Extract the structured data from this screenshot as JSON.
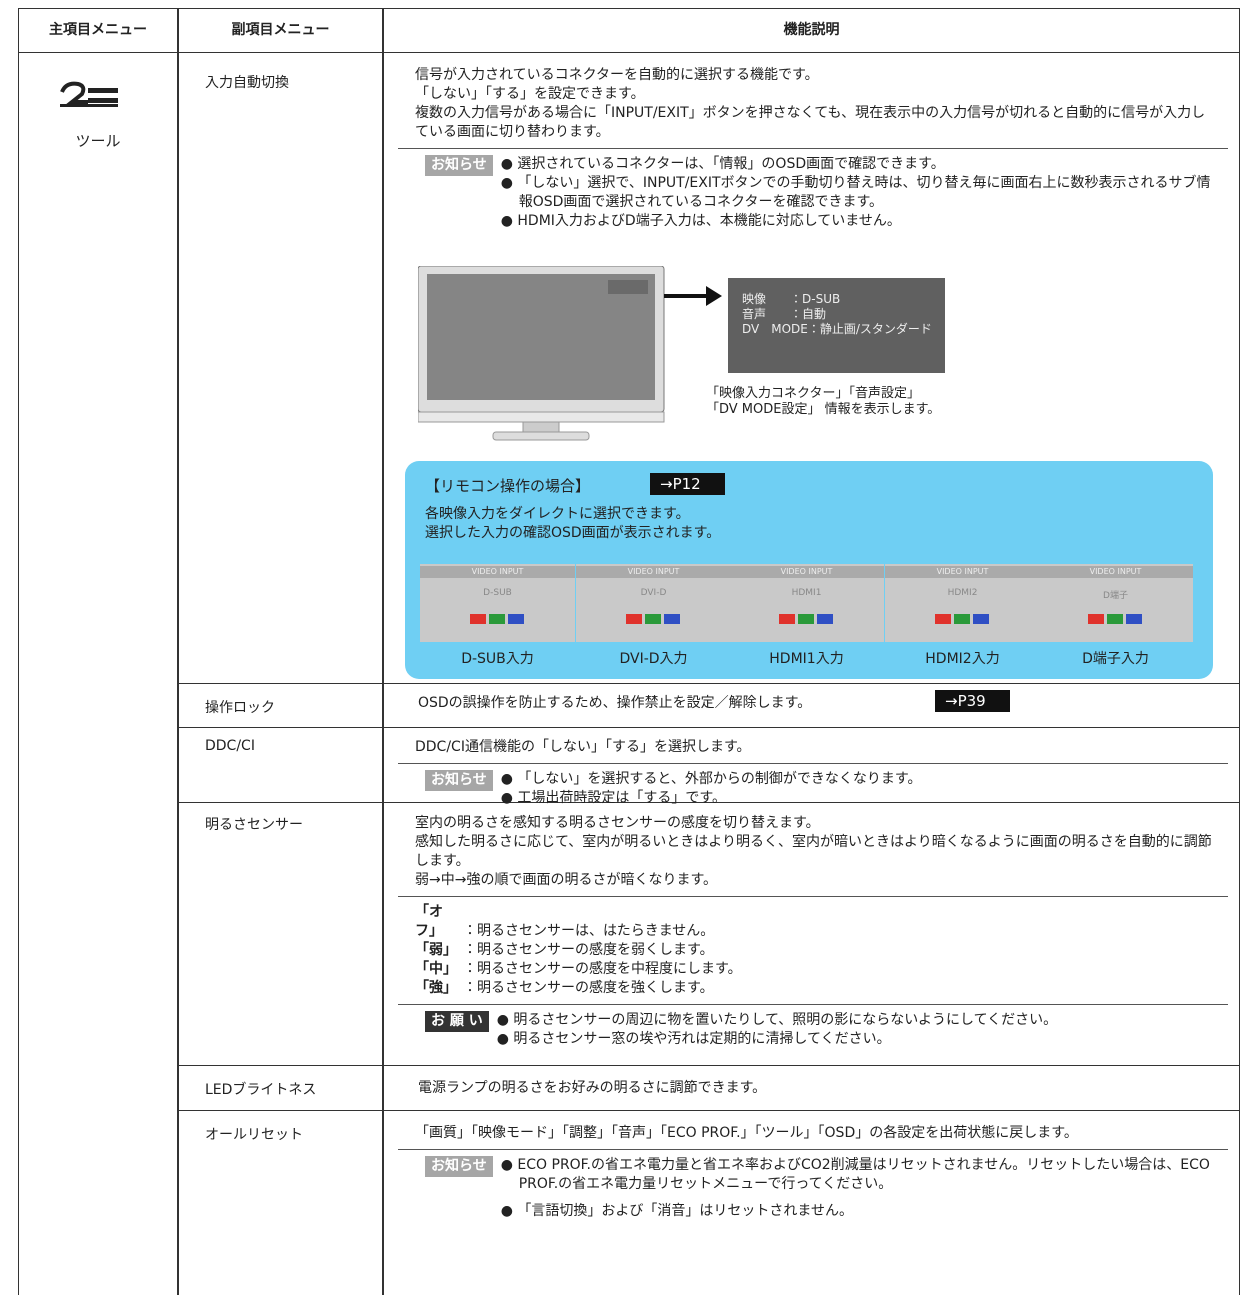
{
  "header": {
    "main": "主項目メニュー",
    "sub": "副項目メニュー",
    "desc": "機能説明"
  },
  "main_item": "ツール",
  "rows": [
    {
      "name": "入力自動切換",
      "description": [
        "信号が入力されているコネクターを自動的に選択する機能です。",
        "「しない」「する」を設定できます。",
        "複数の入力信号がある場合に「INPUT/EXIT」ボタンを押さなくても、現在表示中の入力信号が切れると自動的に信号が入力している画面に切り替わります。"
      ],
      "note": {
        "label": "お知らせ",
        "items": [
          "選択されているコネクターは、「情報」のOSD画面で確認できます。",
          "「しない」選択で、INPUT/EXITボタンでの手動切り替え時は、切り替え毎に画面右上に数秒表示されるサブ情報OSD画面で選択されているコネクターを確認できます。",
          "HDMI入力およびD端子入力は、本機能に対応していません。"
        ]
      },
      "osd": {
        "lines": [
          "映像　　：D-SUB",
          "音声　　：自動",
          "DV　MODE：静止画/スタンダード"
        ],
        "caption": [
          "「映像入力コネクター」「音声設定」",
          "「DV MODE設定」 情報を表示します。"
        ]
      },
      "remote": {
        "title": "【リモコン操作の場合】",
        "ref": "→P12",
        "lines": [
          "各映像入力をダイレクトに選択できます。",
          "選択した入力の確認OSD画面が表示されます。"
        ],
        "inputs": [
          {
            "screen_title": "VIDEO INPUT",
            "screen_label": "D-SUB",
            "caption": "D-SUB入力"
          },
          {
            "screen_title": "VIDEO INPUT",
            "screen_label": "DVI-D",
            "caption": "DVI-D入力"
          },
          {
            "screen_title": "VIDEO INPUT",
            "screen_label": "HDMI1",
            "caption": "HDMI1入力"
          },
          {
            "screen_title": "VIDEO INPUT",
            "screen_label": "HDMI2",
            "caption": "HDMI2入力"
          },
          {
            "screen_title": "VIDEO INPUT",
            "screen_label": "D端子",
            "caption": "D端子入力"
          }
        ]
      }
    },
    {
      "name": "操作ロック",
      "description": [
        "OSDの誤操作を防止するため、操作禁止を設定／解除します。"
      ],
      "ref": "→P39"
    },
    {
      "name": "DDC/CI",
      "description": [
        "DDC/CI通信機能の「しない」「する」を選択します。"
      ],
      "note": {
        "label": "お知らせ",
        "items": [
          "「しない」を選択すると、外部からの制御ができなくなります。",
          "工場出荷時設定は「する」です。"
        ]
      }
    },
    {
      "name": "明るさセンサー",
      "description": [
        "室内の明るさを感知する明るさセンサーの感度を切り替えます。",
        "感知した明るさに応じて、室内が明るいときはより明るく、室内が暗いときはより暗くなるように画面の明るさを自動的に調節します。",
        "弱→中→強の順で画面の明るさが暗くなります。"
      ],
      "options": [
        {
          "term": "「オフ」",
          "text": "：明るさセンサーは、はたらきません。"
        },
        {
          "term": "「弱」",
          "text": "：明るさセンサーの感度を弱くします。"
        },
        {
          "term": "「中」",
          "text": "：明るさセンサーの感度を中程度にします。"
        },
        {
          "term": "「強」",
          "text": "：明るさセンサーの感度を強くします。"
        }
      ],
      "note": {
        "label": "お 願 い",
        "items": [
          "明るさセンサーの周辺に物を置いたりして、照明の影にならないようにしてください。",
          "明るさセンサー窓の埃や汚れは定期的に清掃してください。"
        ]
      }
    },
    {
      "name": "LEDブライトネス",
      "description": [
        "電源ランプの明るさをお好みの明るさに調節できます。"
      ]
    },
    {
      "name": "オールリセット",
      "description": [
        "「画質」「映像モード」「調整」「音声」「ECO PROF.」「ツール」「OSD」の各設定を出荷状態に戻します。"
      ],
      "note": {
        "label": "お知らせ",
        "items": [
          "ECO PROF.の省エネ電力量と省エネ率およびCO2削減量はリセットされません。リセットしたい場合は、ECO PROF.の省エネ電力量リセットメニューで行ってください。",
          "「言語切換」および「消音」はリセットされません。"
        ]
      }
    }
  ]
}
